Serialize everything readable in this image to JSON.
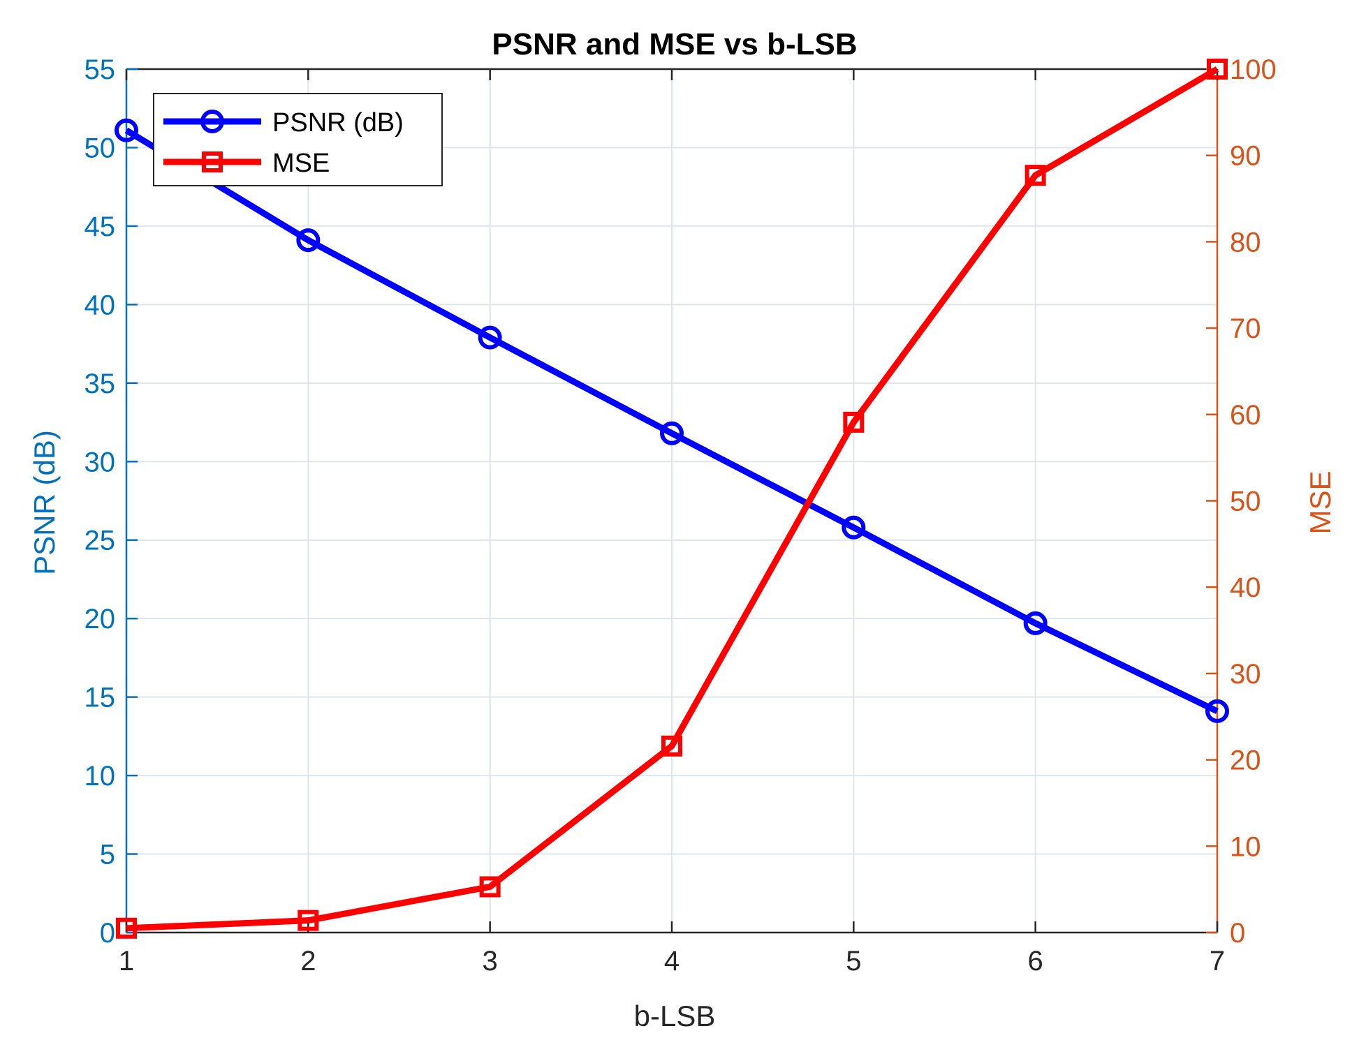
{
  "chart_data": {
    "type": "line",
    "title": "PSNR and MSE vs b-LSB",
    "xlabel": "b-LSB",
    "ylabel_left": "PSNR (dB)",
    "ylabel_right": "MSE",
    "xlim": [
      1,
      7
    ],
    "ylim_left": [
      0,
      55
    ],
    "ylim_right": [
      0,
      100
    ],
    "x_ticks": [
      "1",
      "2",
      "3",
      "4",
      "5",
      "6",
      "7"
    ],
    "y_left_ticks": [
      "0",
      "5",
      "10",
      "15",
      "20",
      "25",
      "30",
      "35",
      "40",
      "45",
      "50",
      "55"
    ],
    "y_right_ticks": [
      "0",
      "10",
      "20",
      "30",
      "40",
      "50",
      "60",
      "70",
      "80",
      "90",
      "100"
    ],
    "x": [
      1,
      2,
      3,
      4,
      5,
      6,
      7
    ],
    "grid": true,
    "legend_position": "top-left",
    "series": [
      {
        "name": "PSNR (dB)",
        "axis": "left",
        "marker": "circle",
        "color": "#0000ff",
        "values": [
          51.1,
          44.1,
          37.9,
          31.8,
          25.8,
          19.7,
          14.1
        ]
      },
      {
        "name": "MSE",
        "axis": "right",
        "marker": "square",
        "color": "#ff0000",
        "values": [
          0.5,
          1.4,
          5.3,
          21.6,
          59.1,
          87.7,
          100
        ]
      }
    ],
    "colors": {
      "left_axis": "#0072bd",
      "right_axis": "#d95319",
      "grid": "#dfe5ec",
      "frame": "#262626"
    }
  }
}
